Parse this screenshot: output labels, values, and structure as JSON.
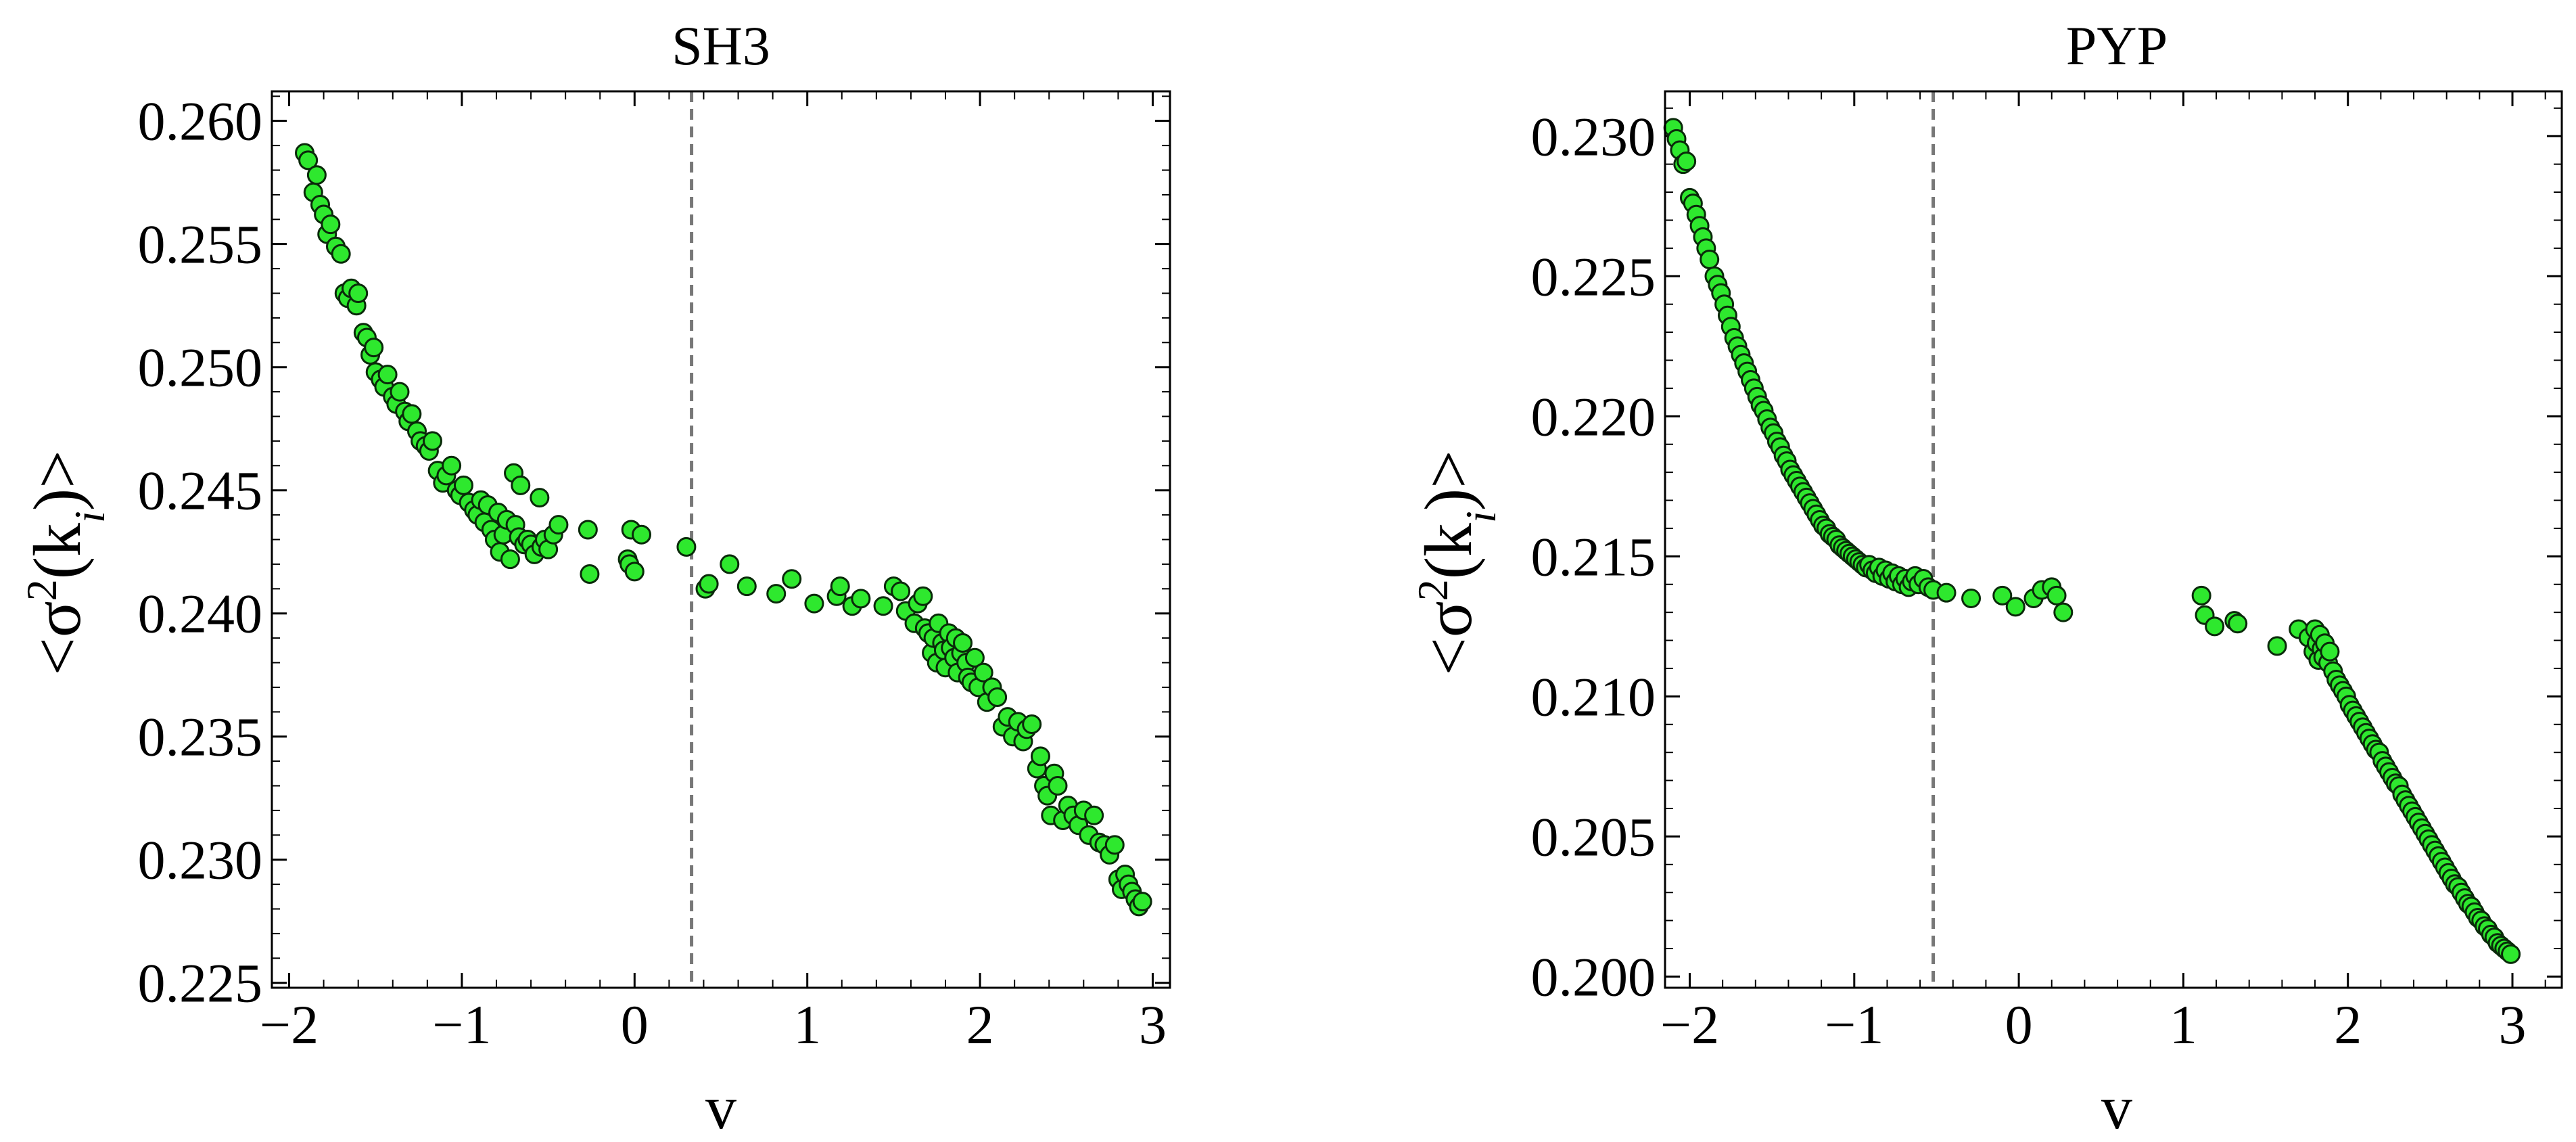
{
  "chart_data": [
    {
      "type": "scatter",
      "title": "SH3",
      "xlabel": "v",
      "ylabel": {
        "prefix": "<σ",
        "sup": "2",
        "mid": "(k",
        "sub": "i",
        "suffix": ")>"
      },
      "xlim": [
        -2.1,
        3.1
      ],
      "ylim": [
        0.2248,
        0.2612
      ],
      "xticks": [
        -2,
        -1,
        0,
        1,
        2,
        3
      ],
      "xtick_labels": [
        "−2",
        "−1",
        "0",
        "1",
        "2",
        "3"
      ],
      "yticks": [
        0.225,
        0.23,
        0.235,
        0.24,
        0.245,
        0.25,
        0.255,
        0.26
      ],
      "ytick_labels": [
        "0.225",
        "0.230",
        "0.235",
        "0.240",
        "0.245",
        "0.250",
        "0.255",
        "0.260"
      ],
      "vline": 0.33,
      "marker_color": "#2ee82e",
      "points": [
        [
          -1.91,
          0.2587
        ],
        [
          -1.89,
          0.2584
        ],
        [
          -1.86,
          0.2571
        ],
        [
          -1.84,
          0.2578
        ],
        [
          -1.82,
          0.2566
        ],
        [
          -1.8,
          0.2562
        ],
        [
          -1.78,
          0.2554
        ],
        [
          -1.76,
          0.2558
        ],
        [
          -1.73,
          0.2549
        ],
        [
          -1.7,
          0.2546
        ],
        [
          -1.68,
          0.253
        ],
        [
          -1.66,
          0.2528
        ],
        [
          -1.64,
          0.2532
        ],
        [
          -1.61,
          0.2525
        ],
        [
          -1.6,
          0.253
        ],
        [
          -1.57,
          0.2514
        ],
        [
          -1.55,
          0.2512
        ],
        [
          -1.53,
          0.2505
        ],
        [
          -1.51,
          0.2508
        ],
        [
          -1.5,
          0.2498
        ],
        [
          -1.47,
          0.2495
        ],
        [
          -1.45,
          0.2492
        ],
        [
          -1.43,
          0.2497
        ],
        [
          -1.4,
          0.2488
        ],
        [
          -1.38,
          0.2485
        ],
        [
          -1.36,
          0.249
        ],
        [
          -1.33,
          0.2482
        ],
        [
          -1.31,
          0.2478
        ],
        [
          -1.29,
          0.2481
        ],
        [
          -1.26,
          0.2474
        ],
        [
          -1.24,
          0.247
        ],
        [
          -1.21,
          0.2468
        ],
        [
          -1.19,
          0.2466
        ],
        [
          -1.17,
          0.247
        ],
        [
          -1.14,
          0.2458
        ],
        [
          -1.11,
          0.2453
        ],
        [
          -1.09,
          0.2456
        ],
        [
          -1.06,
          0.246
        ],
        [
          -1.03,
          0.245
        ],
        [
          -1.01,
          0.2448
        ],
        [
          -0.99,
          0.2452
        ],
        [
          -0.96,
          0.2445
        ],
        [
          -0.93,
          0.2442
        ],
        [
          -0.91,
          0.244
        ],
        [
          -0.89,
          0.2446
        ],
        [
          -0.87,
          0.2437
        ],
        [
          -0.85,
          0.2444
        ],
        [
          -0.83,
          0.2434
        ],
        [
          -0.81,
          0.243
        ],
        [
          -0.79,
          0.2441
        ],
        [
          -0.78,
          0.2425
        ],
        [
          -0.76,
          0.2432
        ],
        [
          -0.74,
          0.2438
        ],
        [
          -0.72,
          0.2422
        ],
        [
          -0.7,
          0.2457
        ],
        [
          -0.69,
          0.2436
        ],
        [
          -0.67,
          0.2431
        ],
        [
          -0.66,
          0.2452
        ],
        [
          -0.64,
          0.2428
        ],
        [
          -0.62,
          0.243
        ],
        [
          -0.6,
          0.2428
        ],
        [
          -0.58,
          0.2424
        ],
        [
          -0.55,
          0.2447
        ],
        [
          -0.54,
          0.2427
        ],
        [
          -0.52,
          0.243
        ],
        [
          -0.5,
          0.2426
        ],
        [
          -0.47,
          0.2432
        ],
        [
          -0.44,
          0.2436
        ],
        [
          -0.27,
          0.2434
        ],
        [
          -0.26,
          0.2416
        ],
        [
          -0.04,
          0.2422
        ],
        [
          -0.03,
          0.242
        ],
        [
          -0.02,
          0.2434
        ],
        [
          0.0,
          0.2417
        ],
        [
          0.04,
          0.2432
        ],
        [
          0.3,
          0.2427
        ],
        [
          0.41,
          0.241
        ],
        [
          0.43,
          0.2412
        ],
        [
          0.55,
          0.242
        ],
        [
          0.65,
          0.2411
        ],
        [
          0.82,
          0.2408
        ],
        [
          0.91,
          0.2414
        ],
        [
          1.04,
          0.2404
        ],
        [
          1.17,
          0.2407
        ],
        [
          1.19,
          0.2411
        ],
        [
          1.26,
          0.2403
        ],
        [
          1.31,
          0.2406
        ],
        [
          1.44,
          0.2403
        ],
        [
          1.5,
          0.2411
        ],
        [
          1.54,
          0.2409
        ],
        [
          1.57,
          0.2401
        ],
        [
          1.62,
          0.2396
        ],
        [
          1.64,
          0.2404
        ],
        [
          1.67,
          0.2407
        ],
        [
          1.68,
          0.2394
        ],
        [
          1.7,
          0.2392
        ],
        [
          1.72,
          0.2384
        ],
        [
          1.73,
          0.239
        ],
        [
          1.75,
          0.238
        ],
        [
          1.76,
          0.2396
        ],
        [
          1.78,
          0.2388
        ],
        [
          1.79,
          0.2385
        ],
        [
          1.8,
          0.2378
        ],
        [
          1.82,
          0.2392
        ],
        [
          1.83,
          0.2386
        ],
        [
          1.85,
          0.2382
        ],
        [
          1.86,
          0.239
        ],
        [
          1.87,
          0.2376
        ],
        [
          1.89,
          0.2384
        ],
        [
          1.9,
          0.2388
        ],
        [
          1.92,
          0.238
        ],
        [
          1.93,
          0.2374
        ],
        [
          1.95,
          0.2372
        ],
        [
          1.97,
          0.2382
        ],
        [
          1.99,
          0.237
        ],
        [
          2.02,
          0.2376
        ],
        [
          2.04,
          0.2364
        ],
        [
          2.07,
          0.237
        ],
        [
          2.1,
          0.2366
        ],
        [
          2.13,
          0.2354
        ],
        [
          2.16,
          0.2358
        ],
        [
          2.19,
          0.235
        ],
        [
          2.22,
          0.2356
        ],
        [
          2.25,
          0.2348
        ],
        [
          2.27,
          0.2353
        ],
        [
          2.3,
          0.2355
        ],
        [
          2.33,
          0.2337
        ],
        [
          2.35,
          0.2342
        ],
        [
          2.37,
          0.233
        ],
        [
          2.39,
          0.2326
        ],
        [
          2.41,
          0.2318
        ],
        [
          2.43,
          0.2335
        ],
        [
          2.45,
          0.233
        ],
        [
          2.48,
          0.2316
        ],
        [
          2.51,
          0.2322
        ],
        [
          2.54,
          0.2318
        ],
        [
          2.57,
          0.2314
        ],
        [
          2.6,
          0.232
        ],
        [
          2.63,
          0.231
        ],
        [
          2.66,
          0.2318
        ],
        [
          2.69,
          0.2307
        ],
        [
          2.72,
          0.2306
        ],
        [
          2.75,
          0.2302
        ],
        [
          2.78,
          0.2306
        ],
        [
          2.8,
          0.2292
        ],
        [
          2.82,
          0.2288
        ],
        [
          2.84,
          0.2294
        ],
        [
          2.86,
          0.229
        ],
        [
          2.88,
          0.2287
        ],
        [
          2.9,
          0.2284
        ],
        [
          2.92,
          0.2281
        ],
        [
          2.94,
          0.2283
        ]
      ]
    },
    {
      "type": "scatter",
      "title": "PYP",
      "xlabel": "v",
      "ylabel": {
        "prefix": "<σ",
        "sup": "2",
        "mid": "(k",
        "sub": "i",
        "suffix": ")>"
      },
      "xlim": [
        -2.15,
        3.3
      ],
      "ylim": [
        0.1996,
        0.2316
      ],
      "xticks": [
        -2,
        -1,
        0,
        1,
        2,
        3
      ],
      "xtick_labels": [
        "−2",
        "−1",
        "0",
        "1",
        "2",
        "3"
      ],
      "yticks": [
        0.2,
        0.205,
        0.21,
        0.215,
        0.22,
        0.225,
        0.23
      ],
      "ytick_labels": [
        "0.200",
        "0.205",
        "0.210",
        "0.215",
        "0.220",
        "0.225",
        "0.230"
      ],
      "vline": -0.52,
      "marker_color": "#2ee82e",
      "points": [
        [
          -2.1,
          0.2303
        ],
        [
          -2.08,
          0.2299
        ],
        [
          -2.06,
          0.2295
        ],
        [
          -2.04,
          0.229
        ],
        [
          -2.02,
          0.2291
        ],
        [
          -2.0,
          0.2278
        ],
        [
          -1.98,
          0.2276
        ],
        [
          -1.96,
          0.2272
        ],
        [
          -1.94,
          0.2268
        ],
        [
          -1.92,
          0.2264
        ],
        [
          -1.9,
          0.226
        ],
        [
          -1.88,
          0.2256
        ],
        [
          -1.85,
          0.225
        ],
        [
          -1.83,
          0.2247
        ],
        [
          -1.81,
          0.2244
        ],
        [
          -1.79,
          0.224
        ],
        [
          -1.77,
          0.2236
        ],
        [
          -1.75,
          0.2232
        ],
        [
          -1.73,
          0.2228
        ],
        [
          -1.71,
          0.2225
        ],
        [
          -1.69,
          0.2222
        ],
        [
          -1.67,
          0.2219
        ],
        [
          -1.65,
          0.2216
        ],
        [
          -1.63,
          0.2213
        ],
        [
          -1.61,
          0.221
        ],
        [
          -1.59,
          0.2207
        ],
        [
          -1.57,
          0.2204
        ],
        [
          -1.55,
          0.2202
        ],
        [
          -1.53,
          0.2199
        ],
        [
          -1.51,
          0.2196
        ],
        [
          -1.49,
          0.2194
        ],
        [
          -1.47,
          0.2191
        ],
        [
          -1.45,
          0.2189
        ],
        [
          -1.43,
          0.2186
        ],
        [
          -1.41,
          0.2184
        ],
        [
          -1.39,
          0.2181
        ],
        [
          -1.37,
          0.2179
        ],
        [
          -1.35,
          0.2177
        ],
        [
          -1.33,
          0.2175
        ],
        [
          -1.31,
          0.2173
        ],
        [
          -1.29,
          0.2171
        ],
        [
          -1.27,
          0.2169
        ],
        [
          -1.25,
          0.2167
        ],
        [
          -1.23,
          0.2165
        ],
        [
          -1.21,
          0.2163
        ],
        [
          -1.19,
          0.2161
        ],
        [
          -1.17,
          0.216
        ],
        [
          -1.15,
          0.2158
        ],
        [
          -1.13,
          0.2157
        ],
        [
          -1.11,
          0.2156
        ],
        [
          -1.09,
          0.2154
        ],
        [
          -1.07,
          0.2153
        ],
        [
          -1.05,
          0.2152
        ],
        [
          -1.03,
          0.2151
        ],
        [
          -1.01,
          0.215
        ],
        [
          -0.99,
          0.2149
        ],
        [
          -0.97,
          0.2148
        ],
        [
          -0.95,
          0.2147
        ],
        [
          -0.93,
          0.2146
        ],
        [
          -0.91,
          0.2147
        ],
        [
          -0.89,
          0.2145
        ],
        [
          -0.87,
          0.2144
        ],
        [
          -0.85,
          0.2146
        ],
        [
          -0.83,
          0.2143
        ],
        [
          -0.81,
          0.2145
        ],
        [
          -0.79,
          0.2142
        ],
        [
          -0.77,
          0.2144
        ],
        [
          -0.75,
          0.2141
        ],
        [
          -0.73,
          0.2143
        ],
        [
          -0.71,
          0.214
        ],
        [
          -0.69,
          0.2142
        ],
        [
          -0.67,
          0.2139
        ],
        [
          -0.65,
          0.2141
        ],
        [
          -0.63,
          0.2143
        ],
        [
          -0.61,
          0.214
        ],
        [
          -0.58,
          0.2142
        ],
        [
          -0.55,
          0.2139
        ],
        [
          -0.52,
          0.2138
        ],
        [
          -0.44,
          0.2137
        ],
        [
          -0.29,
          0.2135
        ],
        [
          -0.1,
          0.2136
        ],
        [
          -0.02,
          0.2132
        ],
        [
          0.09,
          0.2135
        ],
        [
          0.14,
          0.2138
        ],
        [
          0.2,
          0.2139
        ],
        [
          0.23,
          0.2136
        ],
        [
          0.27,
          0.213
        ],
        [
          1.11,
          0.2136
        ],
        [
          1.13,
          0.2129
        ],
        [
          1.19,
          0.2125
        ],
        [
          1.31,
          0.2127
        ],
        [
          1.33,
          0.2126
        ],
        [
          1.57,
          0.2118
        ],
        [
          1.7,
          0.2124
        ],
        [
          1.76,
          0.2121
        ],
        [
          1.79,
          0.2116
        ],
        [
          1.8,
          0.2124
        ],
        [
          1.81,
          0.2119
        ],
        [
          1.82,
          0.2113
        ],
        [
          1.83,
          0.2122
        ],
        [
          1.84,
          0.2117
        ],
        [
          1.85,
          0.2114
        ],
        [
          1.86,
          0.2119
        ],
        [
          1.88,
          0.2112
        ],
        [
          1.89,
          0.2116
        ],
        [
          1.91,
          0.2109
        ],
        [
          1.93,
          0.2106
        ],
        [
          1.95,
          0.2104
        ],
        [
          1.97,
          0.2102
        ],
        [
          1.99,
          0.21
        ],
        [
          2.01,
          0.2097
        ],
        [
          2.03,
          0.2095
        ],
        [
          2.05,
          0.2093
        ],
        [
          2.07,
          0.2091
        ],
        [
          2.09,
          0.2089
        ],
        [
          2.11,
          0.2087
        ],
        [
          2.13,
          0.2085
        ],
        [
          2.15,
          0.2083
        ],
        [
          2.17,
          0.2081
        ],
        [
          2.19,
          0.208
        ],
        [
          2.21,
          0.2077
        ],
        [
          2.23,
          0.2075
        ],
        [
          2.25,
          0.2073
        ],
        [
          2.27,
          0.2071
        ],
        [
          2.29,
          0.2069
        ],
        [
          2.31,
          0.2068
        ],
        [
          2.33,
          0.2065
        ],
        [
          2.35,
          0.2063
        ],
        [
          2.37,
          0.2061
        ],
        [
          2.39,
          0.2059
        ],
        [
          2.41,
          0.2057
        ],
        [
          2.43,
          0.2055
        ],
        [
          2.45,
          0.2053
        ],
        [
          2.47,
          0.2051
        ],
        [
          2.49,
          0.2049
        ],
        [
          2.51,
          0.2047
        ],
        [
          2.53,
          0.2045
        ],
        [
          2.55,
          0.2043
        ],
        [
          2.57,
          0.2041
        ],
        [
          2.59,
          0.2039
        ],
        [
          2.61,
          0.2037
        ],
        [
          2.63,
          0.2035
        ],
        [
          2.65,
          0.2033
        ],
        [
          2.67,
          0.2032
        ],
        [
          2.69,
          0.203
        ],
        [
          2.71,
          0.2028
        ],
        [
          2.73,
          0.2026
        ],
        [
          2.75,
          0.2025
        ],
        [
          2.77,
          0.2023
        ],
        [
          2.79,
          0.2021
        ],
        [
          2.81,
          0.202
        ],
        [
          2.83,
          0.2018
        ],
        [
          2.85,
          0.2017
        ],
        [
          2.87,
          0.2015
        ],
        [
          2.89,
          0.2014
        ],
        [
          2.91,
          0.2012
        ],
        [
          2.93,
          0.2011
        ],
        [
          2.95,
          0.201
        ],
        [
          2.97,
          0.2009
        ],
        [
          2.99,
          0.2008
        ]
      ]
    }
  ]
}
